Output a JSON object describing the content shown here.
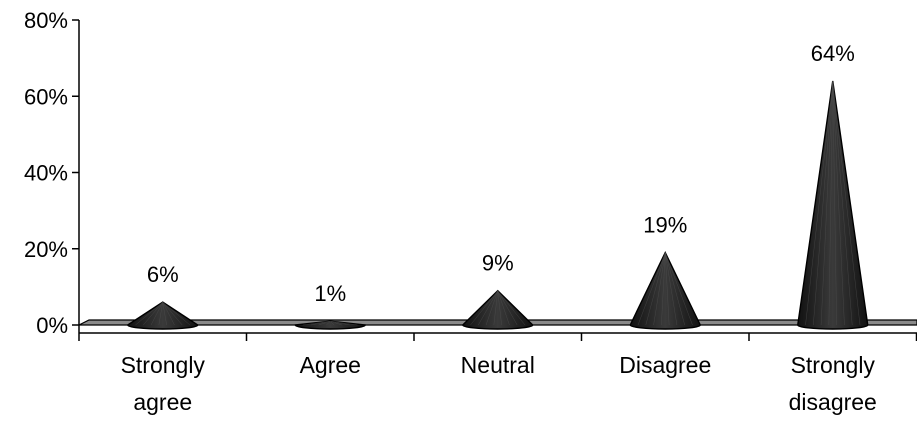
{
  "chart_data": {
    "type": "bar",
    "shape": "cone",
    "categories": [
      [
        "Strongly",
        "agree"
      ],
      [
        "Agree"
      ],
      [
        "Neutral"
      ],
      [
        "Disagree"
      ],
      [
        "Strongly",
        "disagree"
      ]
    ],
    "values": [
      6,
      1,
      9,
      19,
      64
    ],
    "data_labels": [
      "6%",
      "1%",
      "9%",
      "19%",
      "64%"
    ],
    "y_ticks": [
      "0%",
      "20%",
      "40%",
      "60%",
      "80%"
    ],
    "ylim": [
      0,
      80
    ],
    "grid": false,
    "legend": "none",
    "colors": {
      "cone_fill": "#2b2b2b",
      "cone_stroke": "#000000",
      "floor": "#8a8a8a",
      "axis": "#000000"
    }
  }
}
